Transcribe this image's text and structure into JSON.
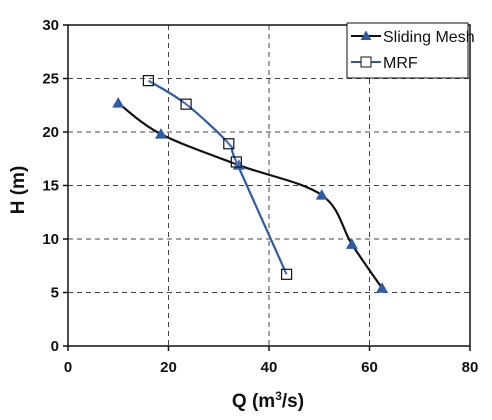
{
  "chart_data": {
    "type": "line",
    "xlabel": "Q (m",
    "xlabel_sup": "3",
    "xlabel_tail": "/s)",
    "ylabel": "H (m)",
    "xlim": [
      0,
      80
    ],
    "ylim": [
      0,
      30
    ],
    "x_ticks": [
      0,
      20,
      40,
      60,
      80
    ],
    "y_ticks": [
      0,
      5,
      10,
      15,
      20,
      25,
      30
    ],
    "grid": true,
    "grid_style": "dashed",
    "legend_position": "top-right",
    "series": [
      {
        "name": "Sliding Mesh",
        "marker": "triangle",
        "line_color": "#111111",
        "marker_color": "#2e5aa6",
        "points": [
          {
            "x": 10,
            "y": 22.7
          },
          {
            "x": 18.5,
            "y": 19.8
          },
          {
            "x": 34,
            "y": 16.9
          },
          {
            "x": 50.5,
            "y": 14.1
          },
          {
            "x": 56.5,
            "y": 9.5
          },
          {
            "x": 62.5,
            "y": 5.4
          }
        ]
      },
      {
        "name": "MRF",
        "marker": "square-open",
        "line_color": "#2e5aa6",
        "marker_color": "#111111",
        "points": [
          {
            "x": 16,
            "y": 24.8
          },
          {
            "x": 23.5,
            "y": 22.6
          },
          {
            "x": 32,
            "y": 18.9
          },
          {
            "x": 33.5,
            "y": 17.2
          },
          {
            "x": 43.5,
            "y": 6.7
          }
        ]
      }
    ]
  }
}
